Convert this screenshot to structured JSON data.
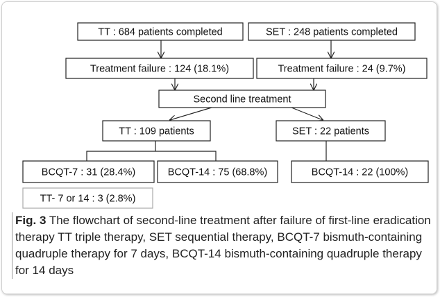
{
  "nodes": [
    {
      "label": "TT :  684 patients completed"
    },
    {
      "label": "SET : 248 patients completed"
    },
    {
      "label": "Treatment failure : 124 (18.1%)"
    },
    {
      "label": "Treatment failure : 24 (9.7%)"
    },
    {
      "label": "Second line treatment"
    },
    {
      "label": "TT : 109 patients"
    },
    {
      "label": "SET : 22 patients"
    },
    {
      "label": "BCQT-7 : 31 (28.4%)"
    },
    {
      "label": "BCQT-14 : 75 (68.8%)"
    },
    {
      "label": "BCQT-14 : 22 (100%)"
    },
    {
      "label": "TT- 7 or 14 : 3 (2.8%)"
    }
  ],
  "caption": {
    "label": "Fig. 3",
    "text": "The flowchart of second-line treatment after failure of first-line eradication therapy TT triple therapy, SET sequential therapy, BCQT-7 bismuth-containing quadruple therapy for 7 days, BCQT-14 bismuth-containing quadruple therapy for 14 days"
  }
}
